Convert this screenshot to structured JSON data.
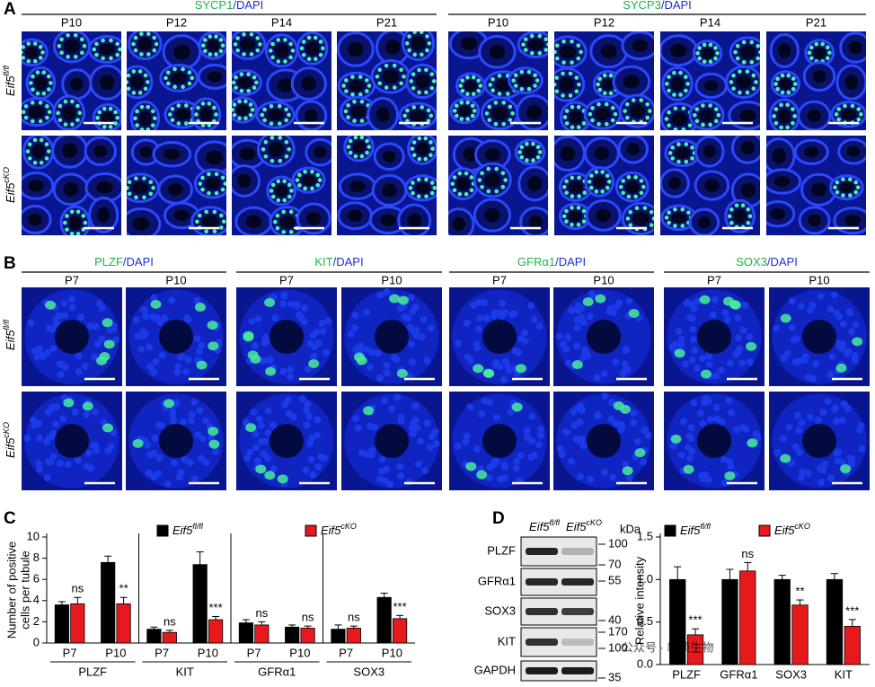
{
  "panel_a": {
    "letter": "A",
    "groups": [
      {
        "stain": "SYCP1",
        "counterstain": "/DAPI",
        "timepoints": [
          "P10",
          "P12",
          "P14",
          "P21"
        ]
      },
      {
        "stain": "SYCP3",
        "counterstain": "/DAPI",
        "timepoints": [
          "P10",
          "P12",
          "P14",
          "P21"
        ]
      }
    ],
    "rows": [
      "Eif5fl/fl",
      "Eif5cKO"
    ]
  },
  "panel_b": {
    "letter": "B",
    "groups": [
      {
        "stain": "PLZF",
        "counterstain": "/DAPI",
        "timepoints": [
          "P7",
          "P10"
        ]
      },
      {
        "stain": "KIT",
        "counterstain": "/DAPI",
        "timepoints": [
          "P7",
          "P10"
        ]
      },
      {
        "stain": "GFRα1",
        "counterstain": "/DAPI",
        "timepoints": [
          "P7",
          "P10"
        ]
      },
      {
        "stain": "SOX3",
        "counterstain": "/DAPI",
        "timepoints": [
          "P7",
          "P10"
        ]
      }
    ],
    "rows": [
      "Eif5fl/fl",
      "Eif5cKO"
    ]
  },
  "chart_data": [
    {
      "type": "bar",
      "panel": "C",
      "ylabel": [
        "Number of positive",
        "cells per tubule"
      ],
      "categories": [
        "P7",
        "P10",
        "P7",
        "P10",
        "P7",
        "P10",
        "P7",
        "P10"
      ],
      "groups": [
        "PLZF",
        "KIT",
        "GFRα1",
        "SOX3"
      ],
      "series": [
        {
          "name": "Eif5fl/fl",
          "color": "#000000",
          "values": [
            3.6,
            7.6,
            1.3,
            7.4,
            1.9,
            1.5,
            1.3,
            4.3
          ],
          "errors": [
            0.3,
            0.6,
            0.2,
            1.2,
            0.3,
            0.2,
            0.4,
            0.4
          ]
        },
        {
          "name": "Eif5cKO",
          "color": "#e8191c",
          "values": [
            3.7,
            3.7,
            1.0,
            2.2,
            1.7,
            1.4,
            1.4,
            2.3
          ],
          "errors": [
            0.6,
            0.6,
            0.2,
            0.3,
            0.3,
            0.2,
            0.2,
            0.3
          ],
          "annotations": [
            "ns",
            "**",
            "ns",
            "***",
            "ns",
            "ns",
            "ns",
            "***"
          ]
        }
      ],
      "ylim": [
        0,
        10
      ],
      "yticks": [
        0,
        2,
        4,
        6,
        8,
        10
      ]
    },
    {
      "type": "bar",
      "panel": "D",
      "ylabel": [
        "Relative intensity"
      ],
      "categories": [
        "PLZF",
        "GFRα1",
        "SOX3",
        "KIT"
      ],
      "series": [
        {
          "name": "Eif5fl/fl",
          "color": "#000000",
          "values": [
            1.0,
            1.0,
            1.0,
            1.0
          ],
          "errors": [
            0.15,
            0.12,
            0.05,
            0.07
          ]
        },
        {
          "name": "Eif5cKO",
          "color": "#e8191c",
          "values": [
            0.35,
            1.1,
            0.7,
            0.45
          ],
          "errors": [
            0.07,
            0.1,
            0.06,
            0.08
          ],
          "annotations": [
            "***",
            "ns",
            "**",
            "***"
          ]
        }
      ],
      "ylim": [
        0,
        1.5
      ],
      "yticks": [
        {
          "value": 0,
          "label": "0.0"
        },
        0.5,
        {
          "value": 1,
          "label": "1.0"
        },
        1.5
      ]
    }
  ],
  "western_blot": {
    "lanes": [
      "Eif5fl/fl",
      "Eif5cKO"
    ],
    "unit": "kDa",
    "proteins": [
      "PLZF",
      "GFRα1",
      "SOX3",
      "KIT",
      "GAPDH"
    ],
    "markers": [
      "100",
      "70",
      "55",
      "40",
      "170",
      "100",
      "35"
    ]
  },
  "watermark": "公众号 · 新侦生物"
}
